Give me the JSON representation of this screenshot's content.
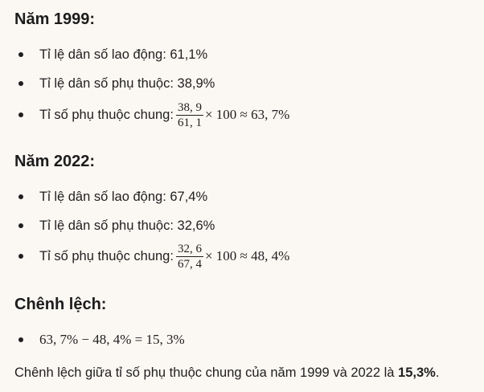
{
  "section1999": {
    "heading": "Năm 1999:",
    "items": [
      {
        "text": "Tỉ lệ dân số lao động: 61,1%"
      },
      {
        "text": "Tỉ lệ dân số phụ thuộc: 38,9%"
      },
      {
        "label": "Tỉ số phụ thuộc chung: ",
        "numerator": "38, 9",
        "denominator": "61, 1",
        "tail": "× 100 ≈ 63, 7%"
      }
    ]
  },
  "section2022": {
    "heading": "Năm 2022:",
    "items": [
      {
        "text": "Tỉ lệ dân số lao động: 67,4%"
      },
      {
        "text": "Tỉ lệ dân số phụ thuộc: 32,6%"
      },
      {
        "label": "Tỉ số phụ thuộc chung: ",
        "numerator": "32, 6",
        "denominator": "67, 4",
        "tail": "× 100 ≈ 48, 4%"
      }
    ]
  },
  "difference": {
    "heading": "Chênh lệch:",
    "formula": "63, 7% − 48, 4% = 15, 3%"
  },
  "conclusion": {
    "text": "Chênh lệch giữa tỉ số phụ thuộc chung của năm 1999 và 2022 là ",
    "value": "15,3%",
    "end": "."
  }
}
